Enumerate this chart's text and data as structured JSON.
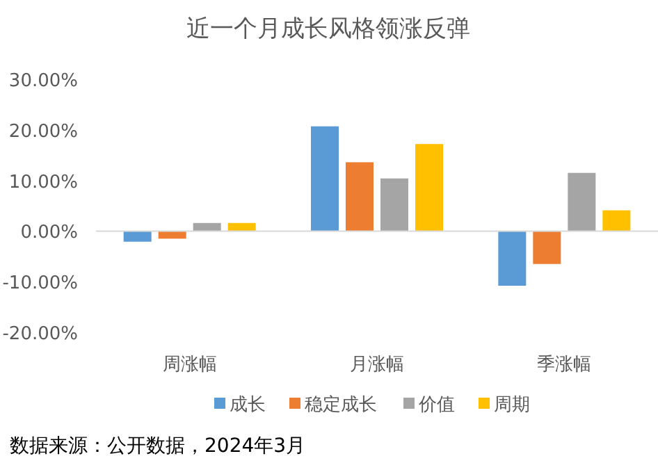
{
  "chart_data": {
    "type": "bar",
    "title": "近一个月成长风格领涨反弹",
    "categories": [
      "周涨幅",
      "月涨幅",
      "季涨幅"
    ],
    "series": [
      {
        "name": "成长",
        "color": "#5b9bd5",
        "values": [
          -2.1,
          20.7,
          -10.8
        ]
      },
      {
        "name": "稳定成长",
        "color": "#ed7d31",
        "values": [
          -1.5,
          13.6,
          -6.5
        ]
      },
      {
        "name": "价值",
        "color": "#a5a5a5",
        "values": [
          1.6,
          10.4,
          11.5
        ]
      },
      {
        "name": "周期",
        "color": "#ffc000",
        "values": [
          1.6,
          17.2,
          4.1
        ]
      }
    ],
    "ylim": [
      -20,
      30
    ],
    "yticks": [
      {
        "value": -20,
        "label": "-20.00%"
      },
      {
        "value": -10,
        "label": "-10.00%"
      },
      {
        "value": 0,
        "label": "0.00%"
      },
      {
        "value": 10,
        "label": "10.00%"
      },
      {
        "value": 20,
        "label": "20.00%"
      },
      {
        "value": 30,
        "label": "30.00%"
      }
    ],
    "legend": "bottom",
    "annotations": [
      "数据来源：公开数据，2024年3月"
    ]
  }
}
